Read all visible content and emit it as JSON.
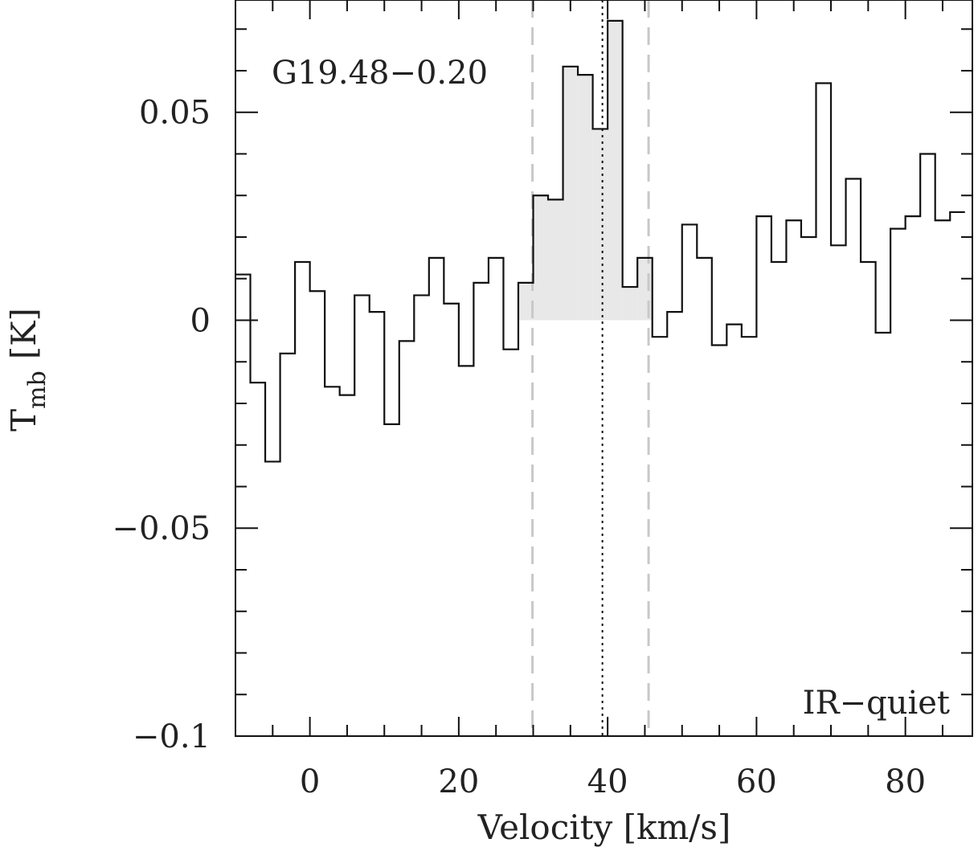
{
  "chart_data": {
    "type": "line",
    "step": true,
    "title": "",
    "xlabel": "Velocity [km/s]",
    "ylabel_main": "T",
    "ylabel_sub": "mb",
    "ylabel_unit": "[K]",
    "source_label": "G19.48−0.20",
    "classification_label": "IR−quiet",
    "xlim": [
      -10,
      89
    ],
    "ylim": [
      -0.1,
      0.077
    ],
    "x_ticks": [
      0,
      20,
      40,
      60,
      80
    ],
    "x_tick_labels": [
      "0",
      "20",
      "40",
      "60",
      "80"
    ],
    "y_ticks": [
      -0.1,
      -0.05,
      0,
      0.05
    ],
    "y_tick_labels": [
      "−0.1",
      "−0.05",
      "0",
      "0.05"
    ],
    "vlines_dashed": [
      29.9,
      45.5
    ],
    "vline_dotted": 39.3,
    "integration_range": [
      28.0,
      46.8
    ],
    "channel_width": 2.0,
    "x": [
      -9,
      -7,
      -5,
      -3,
      -1,
      1,
      3,
      5,
      7,
      9,
      11,
      13,
      15,
      17,
      19,
      21,
      23,
      25,
      27,
      29,
      31,
      33,
      35,
      37,
      39,
      41,
      43,
      45,
      47,
      49,
      51,
      53,
      55,
      57,
      59,
      61,
      63,
      65,
      67,
      69,
      71,
      73,
      75,
      77,
      79,
      81,
      83,
      85,
      87
    ],
    "values": [
      0.011,
      -0.015,
      -0.034,
      -0.008,
      0.014,
      0.007,
      -0.016,
      -0.018,
      0.006,
      0.002,
      -0.025,
      -0.005,
      0.006,
      0.015,
      0.004,
      -0.011,
      0.009,
      0.015,
      -0.007,
      0.009,
      0.03,
      0.029,
      0.061,
      0.059,
      0.046,
      0.072,
      0.008,
      0.015,
      -0.004,
      0.002,
      0.023,
      0.015,
      -0.006,
      -0.001,
      -0.004,
      0.025,
      0.014,
      0.024,
      0.02,
      0.057,
      0.018,
      0.034,
      0.014,
      -0.003,
      0.022,
      0.025,
      0.04,
      0.024,
      0.026
    ]
  }
}
